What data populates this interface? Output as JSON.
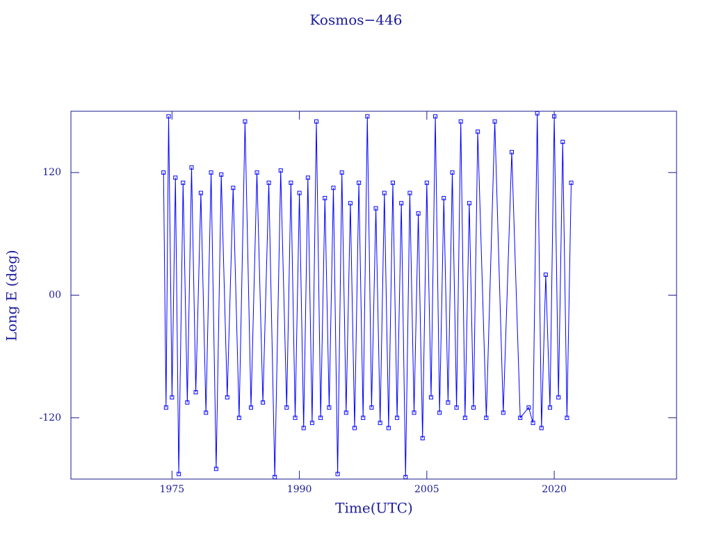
{
  "chart_data": {
    "type": "line",
    "title": "Kosmos−446",
    "xlabel": "Time(UTC)",
    "ylabel": "Long E (deg)",
    "xlim": [
      1963.1,
      2034.4
    ],
    "xticks": [
      1975,
      1990,
      2005,
      2020
    ],
    "ylim": [
      -180,
      180
    ],
    "yticks": [
      -120,
      {
        "value": 0,
        "label": "00"
      },
      120
    ],
    "series": [
      {
        "name": "Kosmos−446",
        "color": "#0000ff",
        "x": [
          1974.0,
          1974.3,
          1974.6,
          1975.0,
          1975.4,
          1975.8,
          1976.3,
          1976.8,
          1977.3,
          1977.8,
          1978.4,
          1979.0,
          1979.6,
          1980.2,
          1980.8,
          1981.5,
          1982.2,
          1982.9,
          1983.6,
          1984.3,
          1985.0,
          1985.7,
          1986.4,
          1987.1,
          1987.8,
          1988.5,
          1989.0,
          1989.5,
          1990.0,
          1990.5,
          1991.0,
          1991.5,
          1992.0,
          1992.5,
          1993.0,
          1993.5,
          1994.0,
          1994.5,
          1995.0,
          1995.5,
          1996.0,
          1996.5,
          1997.0,
          1997.5,
          1998.0,
          1998.5,
          1999.0,
          1999.5,
          2000.0,
          2000.5,
          2001.0,
          2001.5,
          2002.0,
          2002.5,
          2003.0,
          2003.5,
          2004.0,
          2004.5,
          2005.0,
          2005.5,
          2006.0,
          2006.5,
          2007.0,
          2007.5,
          2008.0,
          2008.5,
          2009.0,
          2009.5,
          2010.0,
          2010.5,
          2011.0,
          2012.0,
          2013.0,
          2014.0,
          2015.0,
          2016.0,
          2017.0,
          2017.5,
          2018.0,
          2018.5,
          2019.0,
          2019.5,
          2020.0,
          2020.5,
          2021.0,
          2021.5,
          2022.0
        ],
        "values": [
          120,
          -110,
          175,
          -100,
          115,
          -175,
          110,
          -105,
          125,
          -95,
          100,
          -115,
          120,
          -170,
          118,
          -100,
          105,
          -120,
          170,
          -110,
          120,
          -105,
          110,
          -178,
          122,
          -110,
          110,
          -120,
          100,
          -130,
          115,
          -125,
          170,
          -120,
          95,
          -110,
          105,
          -175,
          120,
          -115,
          90,
          -130,
          110,
          -120,
          175,
          -110,
          85,
          -125,
          100,
          -130,
          110,
          -120,
          90,
          -178,
          100,
          -115,
          80,
          -140,
          110,
          -100,
          175,
          -115,
          95,
          -105,
          120,
          -110,
          170,
          -120,
          90,
          -110,
          160,
          -120,
          170,
          -115,
          140,
          -120,
          -110,
          -125,
          178,
          -130,
          20,
          -110,
          175,
          -100,
          150,
          -120,
          110
        ]
      }
    ]
  }
}
